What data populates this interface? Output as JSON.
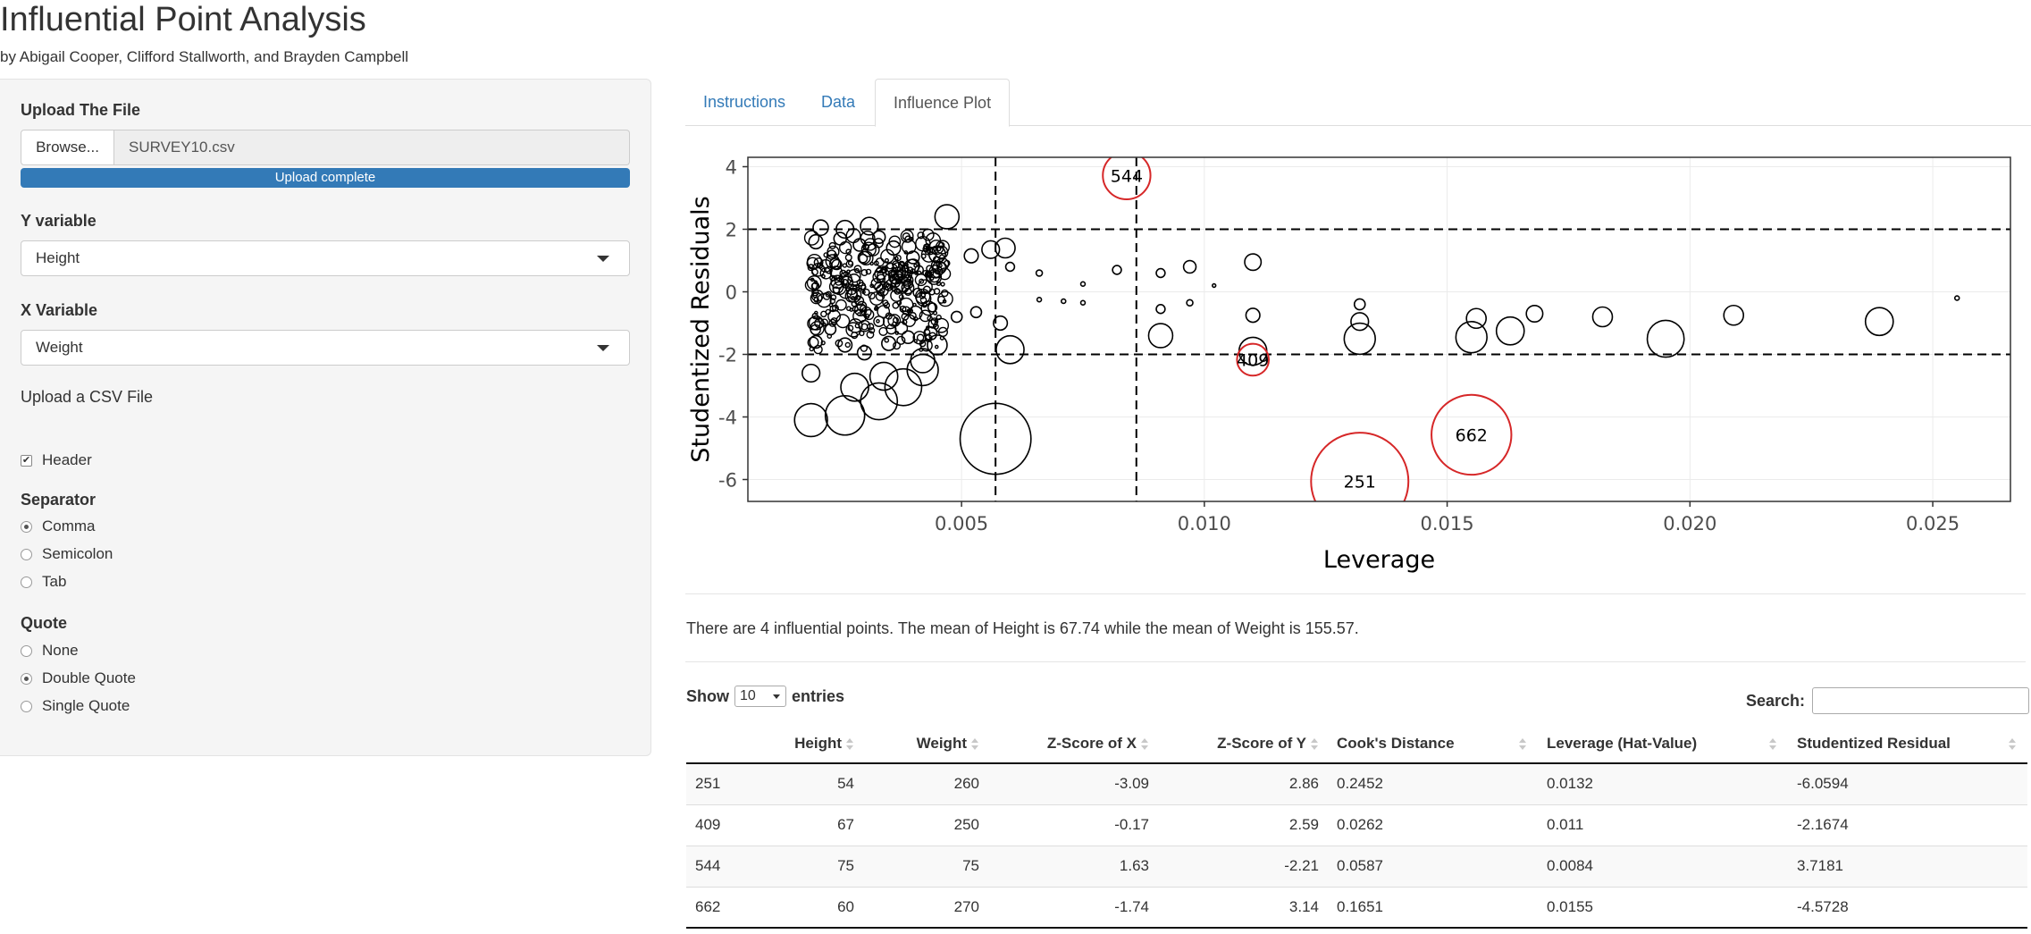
{
  "app": {
    "title": "Influential Point Analysis",
    "subtitle": "by Abigail Cooper, Clifford Stallworth, and Brayden Campbell"
  },
  "sidebar": {
    "upload_label": "Upload The File",
    "browse_label": "Browse...",
    "file_name": "SURVEY10.csv",
    "upload_status": "Upload complete",
    "y_label": "Y variable",
    "y_value": "Height",
    "x_label": "X Variable",
    "x_value": "Weight",
    "csv_note": "Upload a CSV File",
    "header_label": "Header",
    "header_checked": true,
    "separator_label": "Separator",
    "separator_options": [
      "Comma",
      "Semicolon",
      "Tab"
    ],
    "separator_selected": "Comma",
    "quote_label": "Quote",
    "quote_options": [
      "None",
      "Double Quote",
      "Single Quote"
    ],
    "quote_selected": "Double Quote"
  },
  "tabs": [
    {
      "label": "Instructions",
      "active": false
    },
    {
      "label": "Data",
      "active": false
    },
    {
      "label": "Influence Plot",
      "active": true
    }
  ],
  "summary": "There are 4 influential points. The mean of Height is 67.74 while the mean of Weight is 155.57.",
  "table_controls": {
    "show": "Show",
    "entries_value": "10",
    "entries": "entries",
    "search_label": "Search:"
  },
  "table": {
    "columns": [
      "",
      "Height",
      "Weight",
      "Z-Score of X",
      "Z-Score of Y",
      "Cook's Distance",
      "Leverage (Hat-Value)",
      "Studentized Residual"
    ],
    "rows": [
      [
        "251",
        "54",
        "260",
        "-3.09",
        "2.86",
        "0.2452",
        "0.0132",
        "-6.0594"
      ],
      [
        "409",
        "67",
        "250",
        "-0.17",
        "2.59",
        "0.0262",
        "0.011",
        "-2.1674"
      ],
      [
        "544",
        "75",
        "75",
        "1.63",
        "-2.21",
        "0.0587",
        "0.0084",
        "3.7181"
      ],
      [
        "662",
        "60",
        "270",
        "-1.74",
        "3.14",
        "0.1651",
        "0.0155",
        "-4.5728"
      ]
    ]
  },
  "chart_data": {
    "type": "scatter",
    "xlabel": "Leverage",
    "ylabel": "Studentized Residuals",
    "xlim": [
      0.0006,
      0.0266
    ],
    "ylim": [
      -6.7,
      4.3
    ],
    "x_ticks": [
      "0.005",
      "0.010",
      "0.015",
      "0.020",
      "0.025"
    ],
    "x_tick_values": [
      0.005,
      0.01,
      0.015,
      0.02,
      0.025
    ],
    "y_ticks": [
      "-6",
      "-4",
      "-2",
      "0",
      "2",
      "4"
    ],
    "y_tick_values": [
      -6,
      -4,
      -2,
      0,
      2,
      4
    ],
    "grid": true,
    "reference_lines": {
      "y": [
        -2,
        2
      ],
      "x": [
        0.0057,
        0.0086
      ]
    },
    "highlight_color": "#d62728",
    "bubble_size_encodes": "Cook's Distance",
    "highlighted": [
      {
        "label": "251",
        "x": 0.0132,
        "y": -6.06,
        "size": 0.2452
      },
      {
        "label": "409",
        "x": 0.011,
        "y": -2.17,
        "size": 0.0262
      },
      {
        "label": "544",
        "x": 0.0084,
        "y": 3.72,
        "size": 0.0587
      },
      {
        "label": "662",
        "x": 0.0155,
        "y": -4.57,
        "size": 0.1651
      }
    ],
    "points": [
      {
        "x": 0.0057,
        "y": -4.7,
        "size": 0.13
      },
      {
        "x": 0.0019,
        "y": -4.1,
        "size": 0.028
      },
      {
        "x": 0.0026,
        "y": -3.95,
        "size": 0.04
      },
      {
        "x": 0.0033,
        "y": -3.5,
        "size": 0.035
      },
      {
        "x": 0.0038,
        "y": -3.05,
        "size": 0.035
      },
      {
        "x": 0.0042,
        "y": -2.5,
        "size": 0.025
      },
      {
        "x": 0.0028,
        "y": -3.05,
        "size": 0.02
      },
      {
        "x": 0.0034,
        "y": -2.7,
        "size": 0.02
      },
      {
        "x": 0.0019,
        "y": -2.6,
        "size": 0.008
      },
      {
        "x": 0.0042,
        "y": -2.2,
        "size": 0.015
      },
      {
        "x": 0.0045,
        "y": -1.7,
        "size": 0.01
      },
      {
        "x": 0.006,
        "y": -1.85,
        "size": 0.02
      },
      {
        "x": 0.0058,
        "y": -1.0,
        "size": 0.005
      },
      {
        "x": 0.0091,
        "y": -1.4,
        "size": 0.015
      },
      {
        "x": 0.011,
        "y": -1.9,
        "size": 0.02
      },
      {
        "x": 0.011,
        "y": -0.75,
        "size": 0.005
      },
      {
        "x": 0.011,
        "y": 0.95,
        "size": 0.007
      },
      {
        "x": 0.0132,
        "y": -1.5,
        "size": 0.025
      },
      {
        "x": 0.0132,
        "y": -0.95,
        "size": 0.008
      },
      {
        "x": 0.0132,
        "y": -0.4,
        "size": 0.003
      },
      {
        "x": 0.0155,
        "y": -1.45,
        "size": 0.025
      },
      {
        "x": 0.0156,
        "y": -0.85,
        "size": 0.01
      },
      {
        "x": 0.0163,
        "y": -1.25,
        "size": 0.02
      },
      {
        "x": 0.0168,
        "y": -0.7,
        "size": 0.007
      },
      {
        "x": 0.0182,
        "y": -0.8,
        "size": 0.01
      },
      {
        "x": 0.0195,
        "y": -1.5,
        "size": 0.035
      },
      {
        "x": 0.0209,
        "y": -0.75,
        "size": 0.01
      },
      {
        "x": 0.0239,
        "y": -0.95,
        "size": 0.02
      },
      {
        "x": 0.0255,
        "y": -0.2,
        "size": 0.0005
      },
      {
        "x": 0.0047,
        "y": 2.4,
        "size": 0.015
      },
      {
        "x": 0.0059,
        "y": 1.4,
        "size": 0.01
      },
      {
        "x": 0.0056,
        "y": 1.35,
        "size": 0.008
      },
      {
        "x": 0.0052,
        "y": 1.15,
        "size": 0.005
      },
      {
        "x": 0.0045,
        "y": 1.2,
        "size": 0.007
      },
      {
        "x": 0.006,
        "y": 0.8,
        "size": 0.002
      },
      {
        "x": 0.0066,
        "y": 0.6,
        "size": 0.001
      },
      {
        "x": 0.0082,
        "y": 0.7,
        "size": 0.002
      },
      {
        "x": 0.0091,
        "y": 0.6,
        "size": 0.002
      },
      {
        "x": 0.0097,
        "y": 0.8,
        "size": 0.004
      },
      {
        "x": 0.0102,
        "y": 0.2,
        "size": 0.0003
      },
      {
        "x": 0.0091,
        "y": -0.55,
        "size": 0.002
      },
      {
        "x": 0.0097,
        "y": -0.35,
        "size": 0.001
      },
      {
        "x": 0.0066,
        "y": -0.25,
        "size": 0.0005
      },
      {
        "x": 0.0071,
        "y": -0.3,
        "size": 0.0005
      },
      {
        "x": 0.0075,
        "y": -0.35,
        "size": 0.0005
      },
      {
        "x": 0.0075,
        "y": 0.25,
        "size": 0.0005
      },
      {
        "x": 0.0021,
        "y": 2.05,
        "size": 0.006
      },
      {
        "x": 0.0026,
        "y": 2.0,
        "size": 0.008
      },
      {
        "x": 0.0031,
        "y": 2.1,
        "size": 0.008
      },
      {
        "x": 0.002,
        "y": 1.6,
        "size": 0.005
      },
      {
        "x": 0.0036,
        "y": 1.4,
        "size": 0.005
      },
      {
        "x": 0.004,
        "y": 1.1,
        "size": 0.004
      },
      {
        "x": 0.0025,
        "y": 1.7,
        "size": 0.004
      },
      {
        "x": 0.0029,
        "y": 1.5,
        "size": 0.004
      },
      {
        "x": 0.0033,
        "y": 1.75,
        "size": 0.004
      },
      {
        "x": 0.0024,
        "y": 0.9,
        "size": 0.003
      },
      {
        "x": 0.002,
        "y": -1.6,
        "size": 0.004
      },
      {
        "x": 0.0026,
        "y": -1.7,
        "size": 0.005
      },
      {
        "x": 0.003,
        "y": -1.95,
        "size": 0.005
      },
      {
        "x": 0.0035,
        "y": -1.65,
        "size": 0.005
      },
      {
        "x": 0.0039,
        "y": -1.45,
        "size": 0.004
      },
      {
        "x": 0.0023,
        "y": -1.2,
        "size": 0.003
      },
      {
        "x": 0.0049,
        "y": -0.8,
        "size": 0.003
      },
      {
        "x": 0.0053,
        "y": -0.65,
        "size": 0.003
      },
      {
        "x": 0.0044,
        "y": -0.5,
        "size": 0.002
      }
    ]
  }
}
